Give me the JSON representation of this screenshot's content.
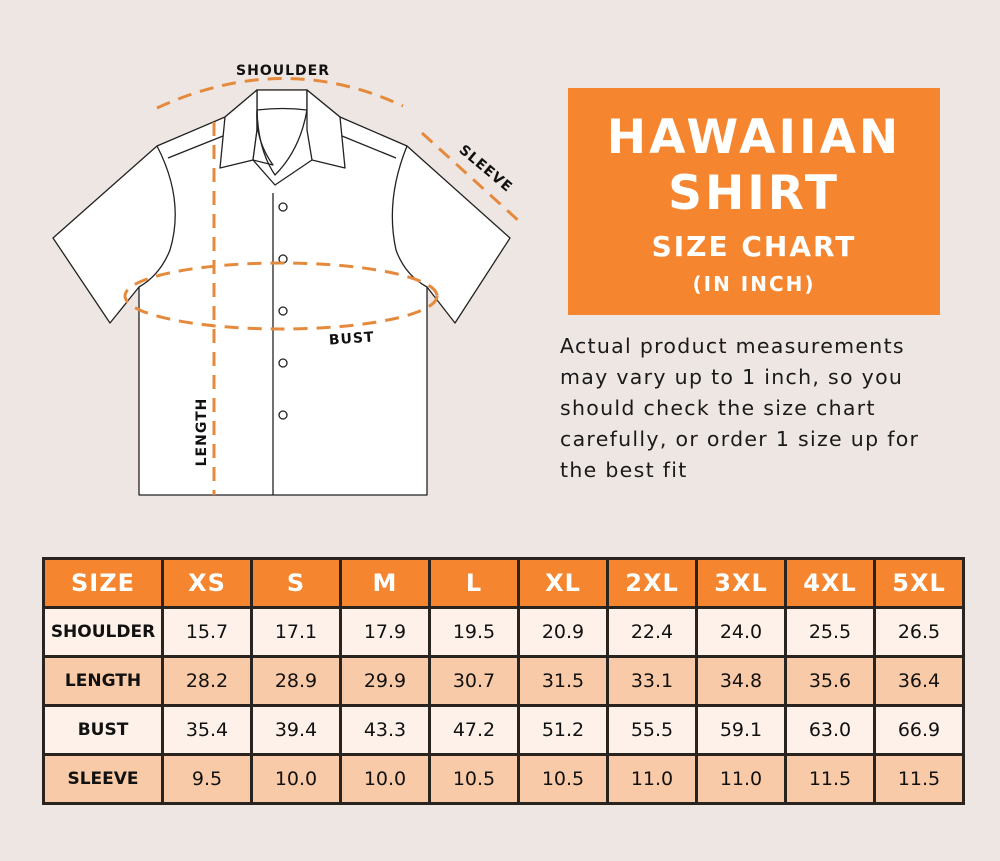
{
  "diagram": {
    "labels": {
      "shoulder": "SHOULDER",
      "sleeve": "SLEEVE",
      "bust": "BUST",
      "length": "LENGTH"
    },
    "accent_color": "#e58a3c"
  },
  "title": {
    "line1": "HAWAIIAN",
    "line2": "SHIRT",
    "line3": "SIZE CHART",
    "line4": "(IN INCH)",
    "background": "#f5862f"
  },
  "note": "Actual product measurements may vary up to 1 inch, so you should check the size chart carefully, or order 1 size up for the best fit",
  "table": {
    "headers": [
      "SIZE",
      "XS",
      "S",
      "M",
      "L",
      "XL",
      "2XL",
      "3XL",
      "4XL",
      "5XL"
    ],
    "rows": [
      {
        "label": "SHOULDER",
        "values": [
          "15.7",
          "17.1",
          "17.9",
          "19.5",
          "20.9",
          "22.4",
          "24.0",
          "25.5",
          "26.5"
        ]
      },
      {
        "label": "LENGTH",
        "values": [
          "28.2",
          "28.9",
          "29.9",
          "30.7",
          "31.5",
          "33.1",
          "34.8",
          "35.6",
          "36.4"
        ]
      },
      {
        "label": "BUST",
        "values": [
          "35.4",
          "39.4",
          "43.3",
          "47.2",
          "51.2",
          "55.5",
          "59.1",
          "63.0",
          "66.9"
        ]
      },
      {
        "label": "SLEEVE",
        "values": [
          "9.5",
          "10.0",
          "10.0",
          "10.5",
          "10.5",
          "11.0",
          "11.0",
          "11.5",
          "11.5"
        ]
      }
    ]
  }
}
